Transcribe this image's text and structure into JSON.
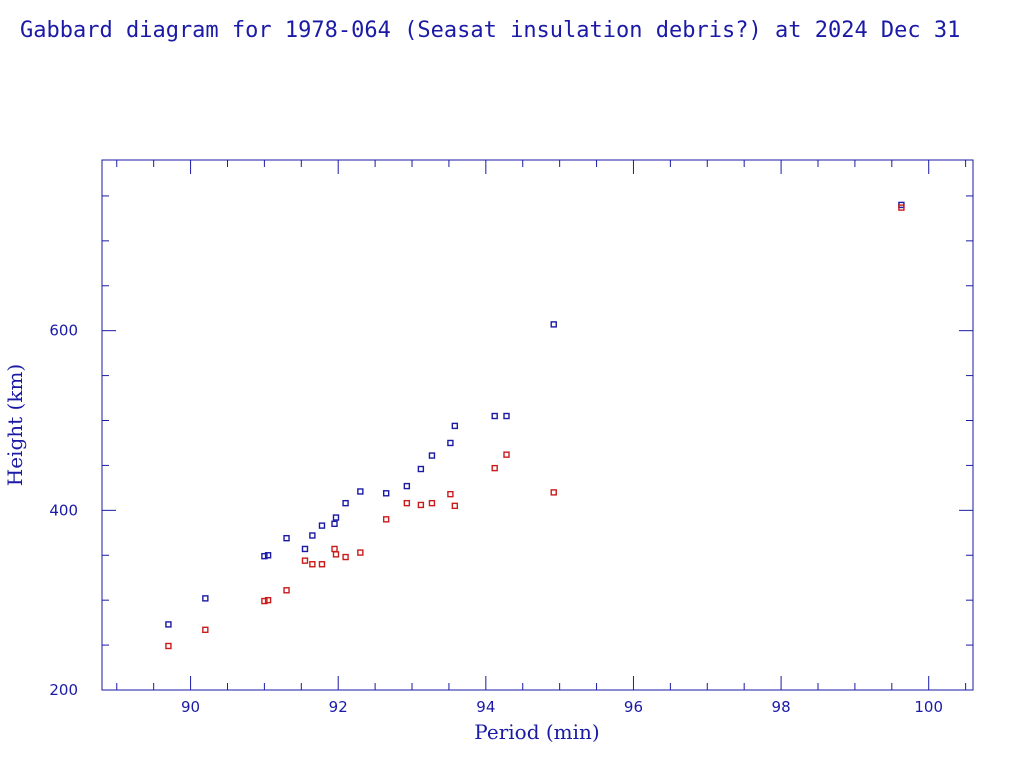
{
  "chart_data": {
    "type": "scatter",
    "title": "Gabbard diagram for 1978-064 (Seasat insulation debris?) at 2024 Dec 31",
    "xlabel": "Period (min)",
    "ylabel": "Height (km)",
    "xlim": [
      88.8,
      100.6
    ],
    "ylim": [
      200,
      790
    ],
    "x_major_ticks": [
      90,
      92,
      94,
      96,
      98,
      100
    ],
    "x_minor_step": 0.5,
    "y_major_ticks": [
      200,
      400,
      600
    ],
    "y_minor_step": 50,
    "grid": false,
    "legend": "none",
    "series": [
      {
        "color": "#1a1aa6",
        "points": [
          {
            "x": 89.7,
            "y": 273
          },
          {
            "x": 90.2,
            "y": 302
          },
          {
            "x": 91.0,
            "y": 349
          },
          {
            "x": 91.05,
            "y": 350
          },
          {
            "x": 91.3,
            "y": 369
          },
          {
            "x": 91.55,
            "y": 357
          },
          {
            "x": 91.65,
            "y": 372
          },
          {
            "x": 91.78,
            "y": 383
          },
          {
            "x": 91.95,
            "y": 385
          },
          {
            "x": 91.97,
            "y": 392
          },
          {
            "x": 92.1,
            "y": 408
          },
          {
            "x": 92.3,
            "y": 421
          },
          {
            "x": 92.65,
            "y": 419
          },
          {
            "x": 92.93,
            "y": 427
          },
          {
            "x": 93.12,
            "y": 446
          },
          {
            "x": 93.27,
            "y": 461
          },
          {
            "x": 93.52,
            "y": 475
          },
          {
            "x": 93.58,
            "y": 494
          },
          {
            "x": 94.12,
            "y": 505
          },
          {
            "x": 94.28,
            "y": 505
          },
          {
            "x": 94.92,
            "y": 607
          },
          {
            "x": 99.63,
            "y": 740
          }
        ]
      },
      {
        "color": "#cc1a1a",
        "points": [
          {
            "x": 89.7,
            "y": 249
          },
          {
            "x": 90.2,
            "y": 267
          },
          {
            "x": 91.0,
            "y": 299
          },
          {
            "x": 91.05,
            "y": 300
          },
          {
            "x": 91.3,
            "y": 311
          },
          {
            "x": 91.55,
            "y": 344
          },
          {
            "x": 91.65,
            "y": 340
          },
          {
            "x": 91.78,
            "y": 340
          },
          {
            "x": 91.95,
            "y": 357
          },
          {
            "x": 91.97,
            "y": 351
          },
          {
            "x": 92.1,
            "y": 348
          },
          {
            "x": 92.3,
            "y": 353
          },
          {
            "x": 92.65,
            "y": 390
          },
          {
            "x": 92.93,
            "y": 408
          },
          {
            "x": 93.12,
            "y": 406
          },
          {
            "x": 93.27,
            "y": 408
          },
          {
            "x": 93.52,
            "y": 418
          },
          {
            "x": 93.58,
            "y": 405
          },
          {
            "x": 94.12,
            "y": 447
          },
          {
            "x": 94.28,
            "y": 462
          },
          {
            "x": 94.92,
            "y": 420
          },
          {
            "x": 99.63,
            "y": 737
          }
        ]
      }
    ]
  }
}
